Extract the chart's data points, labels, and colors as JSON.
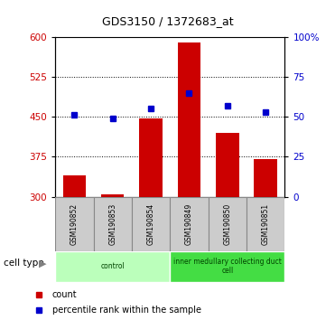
{
  "title": "GDS3150 / 1372683_at",
  "samples": [
    "GSM190852",
    "GSM190853",
    "GSM190854",
    "GSM190849",
    "GSM190850",
    "GSM190851"
  ],
  "bar_values": [
    340,
    305,
    447,
    590,
    420,
    370
  ],
  "percentile_values": [
    51,
    49,
    55,
    65,
    57,
    53
  ],
  "bar_color": "#cc0000",
  "dot_color": "#0000cc",
  "bar_bottom": 300,
  "ylim_left": [
    300,
    600
  ],
  "ylim_right": [
    0,
    100
  ],
  "yticks_left": [
    300,
    375,
    450,
    525,
    600
  ],
  "yticks_right": [
    0,
    25,
    50,
    75,
    100
  ],
  "ytick_labels_right": [
    "0",
    "25",
    "50",
    "75",
    "100%"
  ],
  "cell_types": [
    {
      "label": "control",
      "span": [
        0,
        3
      ],
      "color": "#bbffbb"
    },
    {
      "label": "inner medullary collecting duct\ncell",
      "span": [
        3,
        6
      ],
      "color": "#44dd44"
    }
  ],
  "legend_count_label": "count",
  "legend_pct_label": "percentile rank within the sample",
  "xlabel_cell_type": "cell type",
  "background_plot": "#ffffff",
  "tick_label_color_left": "#cc0000",
  "tick_label_color_right": "#0000cc",
  "sample_box_color": "#cccccc",
  "sample_box_edge": "#888888"
}
